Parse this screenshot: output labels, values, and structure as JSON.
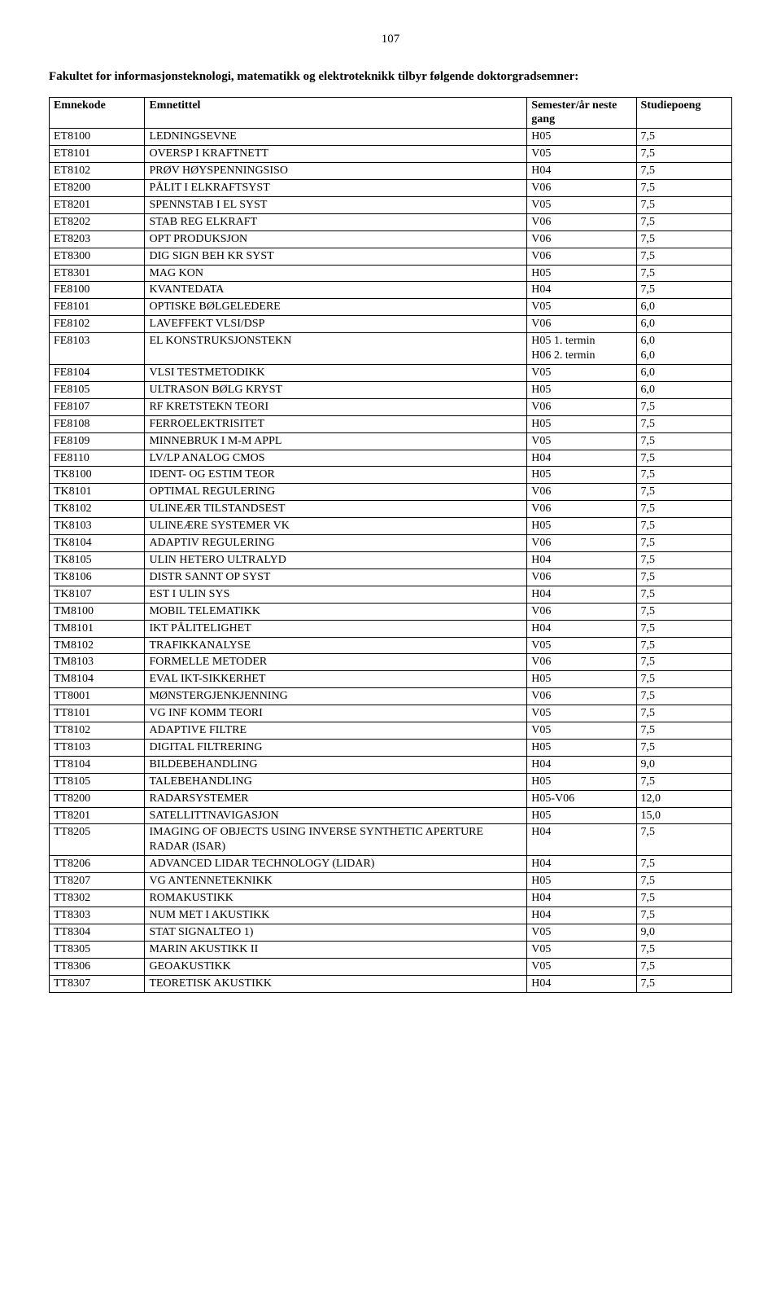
{
  "page_number": "107",
  "intro_text": "Fakultet for informasjonsteknologi, matematikk og elektroteknikk tilbyr følgende doktorgradsemner:",
  "headers": {
    "col1": "Emnekode",
    "col2": "Emnetittel",
    "col3": "Semester/år neste gang",
    "col4": "Studiepoeng"
  },
  "rows": [
    {
      "code": "ET8100",
      "title": "LEDNINGSEVNE",
      "sem": "H05",
      "sp": "7,5"
    },
    {
      "code": "ET8101",
      "title": "OVERSP I KRAFTNETT",
      "sem": "V05",
      "sp": "7,5"
    },
    {
      "code": "ET8102",
      "title": "PRØV HØYSPENNINGSISO",
      "sem": "H04",
      "sp": "7,5"
    },
    {
      "code": "ET8200",
      "title": "PÅLIT I ELKRAFTSYST",
      "sem": "V06",
      "sp": "7,5"
    },
    {
      "code": "ET8201",
      "title": "SPENNSTAB I EL SYST",
      "sem": "V05",
      "sp": "7,5"
    },
    {
      "code": "ET8202",
      "title": "STAB REG ELKRAFT",
      "sem": "V06",
      "sp": "7,5"
    },
    {
      "code": "ET8203",
      "title": "OPT PRODUKSJON",
      "sem": "V06",
      "sp": "7,5"
    },
    {
      "code": "ET8300",
      "title": "DIG SIGN BEH KR SYST",
      "sem": "V06",
      "sp": "7,5"
    },
    {
      "code": "ET8301",
      "title": "MAG KON",
      "sem": "H05",
      "sp": "7,5"
    },
    {
      "code": "FE8100",
      "title": "KVANTEDATA",
      "sem": "H04",
      "sp": "7,5"
    },
    {
      "code": "FE8101",
      "title": "OPTISKE BØLGELEDERE",
      "sem": "V05",
      "sp": "6,0"
    },
    {
      "code": "FE8102",
      "title": "LAVEFFEKT VLSI/DSP",
      "sem": "V06",
      "sp": "6,0"
    },
    {
      "code": "FE8103",
      "title": "EL KONSTRUKSJONSTEKN",
      "sem": "H05  1. termin\nH06  2. termin",
      "sp": "6,0\n6,0"
    },
    {
      "code": "FE8104",
      "title": "VLSI TESTMETODIKK",
      "sem": "V05",
      "sp": "6,0"
    },
    {
      "code": "FE8105",
      "title": "ULTRASON BØLG KRYST",
      "sem": "H05",
      "sp": "6,0"
    },
    {
      "code": "FE8107",
      "title": "RF KRETSTEKN TEORI",
      "sem": "V06",
      "sp": "7,5"
    },
    {
      "code": "FE8108",
      "title": "FERROELEKTRISITET",
      "sem": "H05",
      "sp": "7,5"
    },
    {
      "code": "FE8109",
      "title": "MINNEBRUK I M-M APPL",
      "sem": "V05",
      "sp": "7,5"
    },
    {
      "code": "FE8110",
      "title": "LV/LP ANALOG CMOS",
      "sem": "H04",
      "sp": "7,5"
    },
    {
      "code": "TK8100",
      "title": "IDENT- OG ESTIM TEOR",
      "sem": "H05",
      "sp": "7,5"
    },
    {
      "code": "TK8101",
      "title": "OPTIMAL REGULERING",
      "sem": "V06",
      "sp": "7,5"
    },
    {
      "code": "TK8102",
      "title": "ULINEÆR TILSTANDSEST",
      "sem": "V06",
      "sp": "7,5"
    },
    {
      "code": "TK8103",
      "title": "ULINEÆRE SYSTEMER VK",
      "sem": "H05",
      "sp": "7,5"
    },
    {
      "code": "TK8104",
      "title": "ADAPTIV REGULERING",
      "sem": "V06",
      "sp": "7,5"
    },
    {
      "code": "TK8105",
      "title": "ULIN HETERO ULTRALYD",
      "sem": "H04",
      "sp": "7,5"
    },
    {
      "code": "TK8106",
      "title": "DISTR SANNT OP SYST",
      "sem": "V06",
      "sp": "7,5"
    },
    {
      "code": "TK8107",
      "title": "EST I ULIN SYS",
      "sem": "H04",
      "sp": "7,5"
    },
    {
      "code": "TM8100",
      "title": "MOBIL TELEMATIKK",
      "sem": "V06",
      "sp": "7,5"
    },
    {
      "code": "TM8101",
      "title": "IKT PÅLITELIGHET",
      "sem": "H04",
      "sp": "7,5"
    },
    {
      "code": "TM8102",
      "title": "TRAFIKKANALYSE",
      "sem": "V05",
      "sp": "7,5"
    },
    {
      "code": "TM8103",
      "title": "FORMELLE METODER",
      "sem": "V06",
      "sp": "7,5"
    },
    {
      "code": "TM8104",
      "title": "EVAL IKT-SIKKERHET",
      "sem": "H05",
      "sp": "7,5"
    },
    {
      "code": "TT8001",
      "title": "MØNSTERGJENKJENNING",
      "sem": "V06",
      "sp": "7,5"
    },
    {
      "code": "TT8101",
      "title": "VG INF KOMM TEORI",
      "sem": "V05",
      "sp": "7,5"
    },
    {
      "code": "TT8102",
      "title": "ADAPTIVE FILTRE",
      "sem": "V05",
      "sp": "7,5"
    },
    {
      "code": "TT8103",
      "title": "DIGITAL FILTRERING",
      "sem": "H05",
      "sp": "7,5"
    },
    {
      "code": "TT8104",
      "title": "BILDEBEHANDLING",
      "sem": "H04",
      "sp": "9,0"
    },
    {
      "code": "TT8105",
      "title": "TALEBEHANDLING",
      "sem": "H05",
      "sp": "7,5"
    },
    {
      "code": "TT8200",
      "title": "RADARSYSTEMER",
      "sem": "H05-V06",
      "sp": "12,0"
    },
    {
      "code": "TT8201",
      "title": "SATELLITTNAVIGASJON",
      "sem": "H05",
      "sp": "15,0"
    },
    {
      "code": "TT8205",
      "title": "IMAGING OF OBJECTS USING INVERSE SYNTHETIC APERTURE RADAR (ISAR)",
      "sem": "H04",
      "sp": "7,5"
    },
    {
      "code": "TT8206",
      "title": "ADVANCED LIDAR TECHNOLOGY (LIDAR)",
      "sem": "H04",
      "sp": "7,5"
    },
    {
      "code": "TT8207",
      "title": "VG ANTENNETEKNIKK",
      "sem": "H05",
      "sp": "7,5"
    },
    {
      "code": "TT8302",
      "title": "ROMAKUSTIKK",
      "sem": "H04",
      "sp": "7,5"
    },
    {
      "code": "TT8303",
      "title": "NUM MET I AKUSTIKK",
      "sem": "H04",
      "sp": "7,5"
    },
    {
      "code": "TT8304",
      "title": "STAT SIGNALTEO   1)",
      "sem": "V05",
      "sp": "9,0"
    },
    {
      "code": "TT8305",
      "title": "MARIN AKUSTIKK II",
      "sem": "V05",
      "sp": "7,5"
    },
    {
      "code": "TT8306",
      "title": "GEOAKUSTIKK",
      "sem": "V05",
      "sp": "7,5"
    },
    {
      "code": "TT8307",
      "title": "TEORETISK AKUSTIKK",
      "sem": "H04",
      "sp": "7,5"
    }
  ]
}
